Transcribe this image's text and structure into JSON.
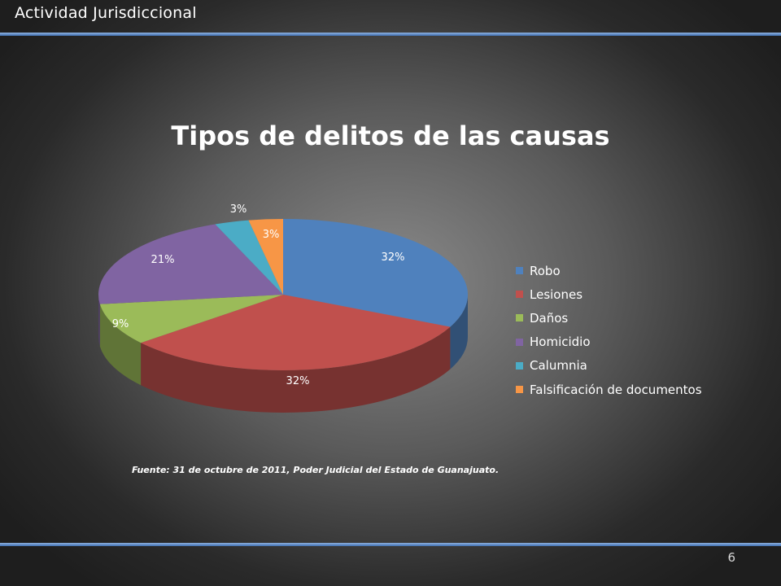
{
  "header": {
    "title": "Actividad Jurisdiccional"
  },
  "footer": {
    "page_number": "6"
  },
  "source_note": "Fuente:  31 de octubre de 2011,  Poder Judicial del Estado de Guanajuato.",
  "chart_data": {
    "type": "pie",
    "style": "3d",
    "title": "Tipos de delitos de las causas",
    "legend_position": "right",
    "slices": [
      {
        "name": "Robo",
        "value": 32,
        "label": "32%",
        "color": "#4f81bd"
      },
      {
        "name": "Lesiones",
        "value": 32,
        "label": "32%",
        "color": "#c0504d"
      },
      {
        "name": "Daños",
        "value": 9,
        "label": "9%",
        "color": "#9bbb59"
      },
      {
        "name": "Homicidio",
        "value": 21,
        "label": "21%",
        "color": "#8064a2"
      },
      {
        "name": "Calumnia",
        "value": 3,
        "label": "3%",
        "color": "#4bacc6"
      },
      {
        "name": "Falsificación de documentos",
        "value": 3,
        "label": "3%",
        "color": "#f79646"
      }
    ]
  }
}
